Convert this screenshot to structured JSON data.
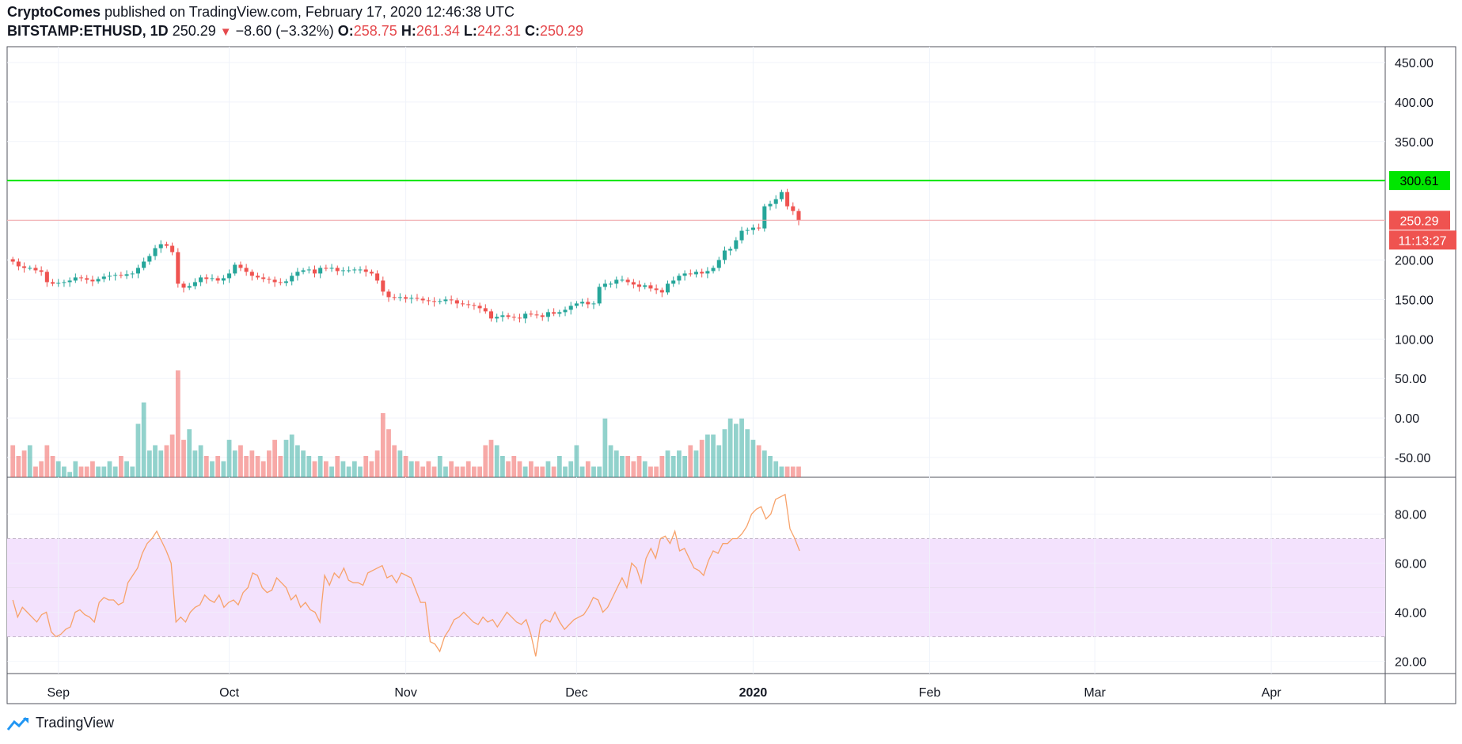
{
  "header": {
    "publisher": "CryptoComes",
    "published_text": "published on TradingView.com, February 17, 2020 12:46:38 UTC",
    "symbol": "BITSTAMP:ETHUSD, 1D",
    "last": "250.29",
    "change": "−8.60 (−3.32%)",
    "o_label": "O:",
    "o_val": "258.75",
    "h_label": "H:",
    "h_val": "261.34",
    "l_label": "L:",
    "l_val": "242.31",
    "c_label": "C:",
    "c_val": "250.29"
  },
  "footer": {
    "brand": "TradingView"
  },
  "colors": {
    "up": "#26a69a",
    "down": "#ef5350",
    "level": "#00e600",
    "rsi": "#f7a26a",
    "rsi_band": "#f3e2fd"
  },
  "chart_data": [
    {
      "type": "candlestick",
      "symbol": "BITSTAMP:ETHUSD",
      "interval": "1D",
      "y_ticks": [
        "450.00",
        "400.00",
        "350.00",
        "300.00",
        "250.00",
        "200.00",
        "150.00",
        "100.00",
        "50.00",
        "0.00",
        "-50.00"
      ],
      "ylim": [
        -75,
        470
      ],
      "x_ticks": [
        "Sep",
        "Oct",
        "Nov",
        "Dec",
        "2020",
        "Feb",
        "Mar",
        "Apr"
      ],
      "x_range_days": [
        -9,
        233
      ],
      "x_tick_days": [
        0,
        30,
        61,
        91,
        122,
        153,
        182,
        213
      ],
      "horizontal_line": {
        "value": 300.61,
        "label": "300.61"
      },
      "last_price_label": "250.29",
      "countdown_label": "11:13:27",
      "close_series": [
        198,
        192,
        190,
        190,
        187,
        185,
        172,
        170,
        171,
        172,
        174,
        178,
        177,
        175,
        173,
        176,
        179,
        180,
        181,
        180,
        182,
        183,
        190,
        198,
        205,
        215,
        220,
        218,
        210,
        170,
        165,
        167,
        172,
        178,
        176,
        177,
        174,
        177,
        183,
        194,
        190,
        185,
        180,
        178,
        176,
        175,
        172,
        171,
        173,
        180,
        185,
        187,
        188,
        183,
        190,
        189,
        190,
        186,
        187,
        187,
        188,
        188,
        185,
        183,
        174,
        160,
        153,
        152,
        153,
        151,
        152,
        151,
        149,
        148,
        147,
        148,
        150,
        149,
        145,
        144,
        143,
        142,
        139,
        135,
        126,
        128,
        130,
        128,
        127,
        126,
        132,
        131,
        130,
        128,
        134,
        132,
        134,
        137,
        142,
        145,
        147,
        144,
        145,
        166,
        170,
        170,
        175,
        175,
        172,
        169,
        166,
        168,
        164,
        162,
        159,
        170,
        174,
        180,
        183,
        182,
        185,
        183,
        186,
        190,
        200,
        212,
        214,
        225,
        237,
        238,
        241,
        240,
        268,
        271,
        277,
        286,
        268,
        262,
        250
      ],
      "volume_note": "volume histogram shown under price; relative heights only",
      "volume_rel": [
        0.3,
        0.2,
        0.25,
        0.3,
        0.1,
        0.15,
        0.3,
        0.2,
        0.15,
        0.1,
        0.05,
        0.15,
        0.1,
        0.1,
        0.15,
        0.1,
        0.1,
        0.15,
        0.1,
        0.2,
        0.15,
        0.1,
        0.5,
        0.7,
        0.25,
        0.3,
        0.25,
        0.3,
        0.4,
        1.0,
        0.35,
        0.45,
        0.25,
        0.3,
        0.2,
        0.15,
        0.2,
        0.15,
        0.35,
        0.25,
        0.3,
        0.2,
        0.25,
        0.2,
        0.15,
        0.25,
        0.35,
        0.2,
        0.35,
        0.4,
        0.3,
        0.25,
        0.2,
        0.15,
        0.2,
        0.15,
        0.1,
        0.2,
        0.15,
        0.1,
        0.15,
        0.1,
        0.2,
        0.15,
        0.25,
        0.6,
        0.45,
        0.3,
        0.25,
        0.2,
        0.15,
        0.15,
        0.1,
        0.15,
        0.1,
        0.2,
        0.1,
        0.15,
        0.1,
        0.1,
        0.15,
        0.1,
        0.1,
        0.3,
        0.35,
        0.3,
        0.2,
        0.15,
        0.2,
        0.15,
        0.1,
        0.15,
        0.1,
        0.1,
        0.15,
        0.1,
        0.2,
        0.1,
        0.15,
        0.3,
        0.1,
        0.15,
        0.1,
        0.1,
        0.55,
        0.3,
        0.25,
        0.2,
        0.2,
        0.15,
        0.2,
        0.15,
        0.1,
        0.1,
        0.2,
        0.25,
        0.2,
        0.25,
        0.2,
        0.3,
        0.25,
        0.35,
        0.4,
        0.4,
        0.3,
        0.45,
        0.55,
        0.5,
        0.55,
        0.45,
        0.35,
        0.3,
        0.25,
        0.2,
        0.15,
        0.1,
        0.1,
        0.1,
        0.1
      ]
    },
    {
      "type": "line",
      "indicator": "RSI",
      "y_ticks": [
        "80.00",
        "60.00",
        "40.00",
        "20.00"
      ],
      "ylim": [
        15,
        95
      ],
      "band": [
        30,
        70
      ],
      "values": [
        45,
        38,
        42,
        40,
        38,
        36,
        39,
        40,
        32,
        30,
        31,
        33,
        34,
        40,
        41,
        39,
        38,
        36,
        44,
        46,
        45,
        45,
        43,
        44,
        52,
        55,
        58,
        64,
        68,
        70,
        73,
        69,
        65,
        60,
        36,
        38,
        36,
        40,
        42,
        43,
        47,
        45,
        44,
        47,
        42,
        44,
        45,
        43,
        48,
        50,
        56,
        55,
        50,
        48,
        49,
        54,
        52,
        50,
        45,
        47,
        42,
        44,
        41,
        40,
        36,
        55,
        51,
        56,
        54,
        58,
        53,
        52,
        52,
        51,
        56,
        57,
        58,
        59,
        54,
        55,
        52,
        56,
        55,
        54,
        49,
        44,
        44,
        28,
        27,
        24,
        30,
        33,
        37,
        38,
        40,
        38,
        36,
        35,
        38,
        36,
        37,
        34,
        37,
        40,
        38,
        36,
        35,
        37,
        31,
        22,
        35,
        37,
        36,
        40,
        36,
        33,
        35,
        37,
        38,
        39,
        42,
        46,
        45,
        40,
        42,
        46,
        50,
        54,
        50,
        60,
        58,
        52,
        62,
        66,
        62,
        70,
        71,
        68,
        73,
        65,
        66,
        62,
        58,
        57,
        55,
        61,
        65,
        64,
        68,
        68,
        70,
        70,
        72,
        75,
        80,
        82,
        83,
        78,
        80,
        86,
        87,
        88,
        74,
        70,
        65
      ]
    }
  ]
}
